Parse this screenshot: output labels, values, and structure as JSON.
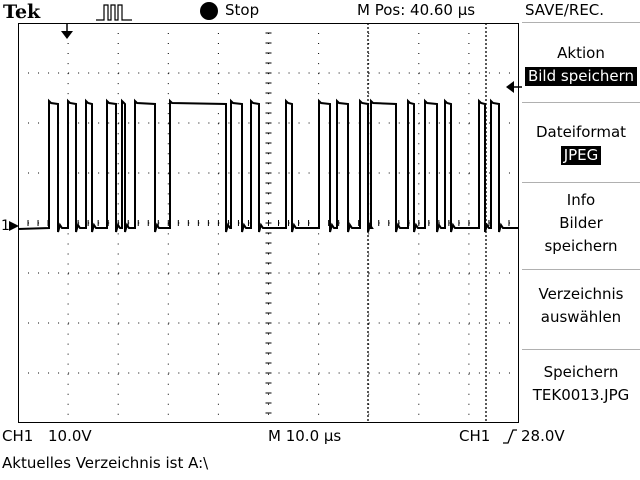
{
  "header": {
    "brand": "Tek",
    "acquisition_icon": "pulse-waveform-icon",
    "run_state_icon": "filled-circle-icon",
    "run_state": "Stop",
    "m_pos": "M Pos: 40.60 µs"
  },
  "menu": {
    "title": "SAVE/REC.",
    "items": [
      {
        "lines": [
          "Aktion"
        ],
        "selected": "Bild speichern"
      },
      {
        "lines": [
          "Dateiformat"
        ],
        "selected": "JPEG"
      },
      {
        "lines": [
          "Info",
          "Bilder",
          "speichern"
        ]
      },
      {
        "lines": [
          "Verzeichnis",
          "auswählen"
        ]
      },
      {
        "lines": [
          "Speichern",
          "TEK0013.JPG"
        ]
      }
    ]
  },
  "channel": {
    "marker": "1",
    "label": "CH1",
    "scale": "10.0V"
  },
  "timebase": {
    "scale": "M 10.0 µs"
  },
  "trigger": {
    "source": "CH1",
    "slope_icon": "rising-edge-icon",
    "level": "28.0V"
  },
  "status_message": "Aktuelles Verzeichnis ist A:\\",
  "colors": {
    "background": "#ffffff",
    "trace": "#000000",
    "grid": "#000000"
  },
  "trace_levels": {
    "low": 0.0,
    "high": 28.0,
    "units": "V"
  }
}
